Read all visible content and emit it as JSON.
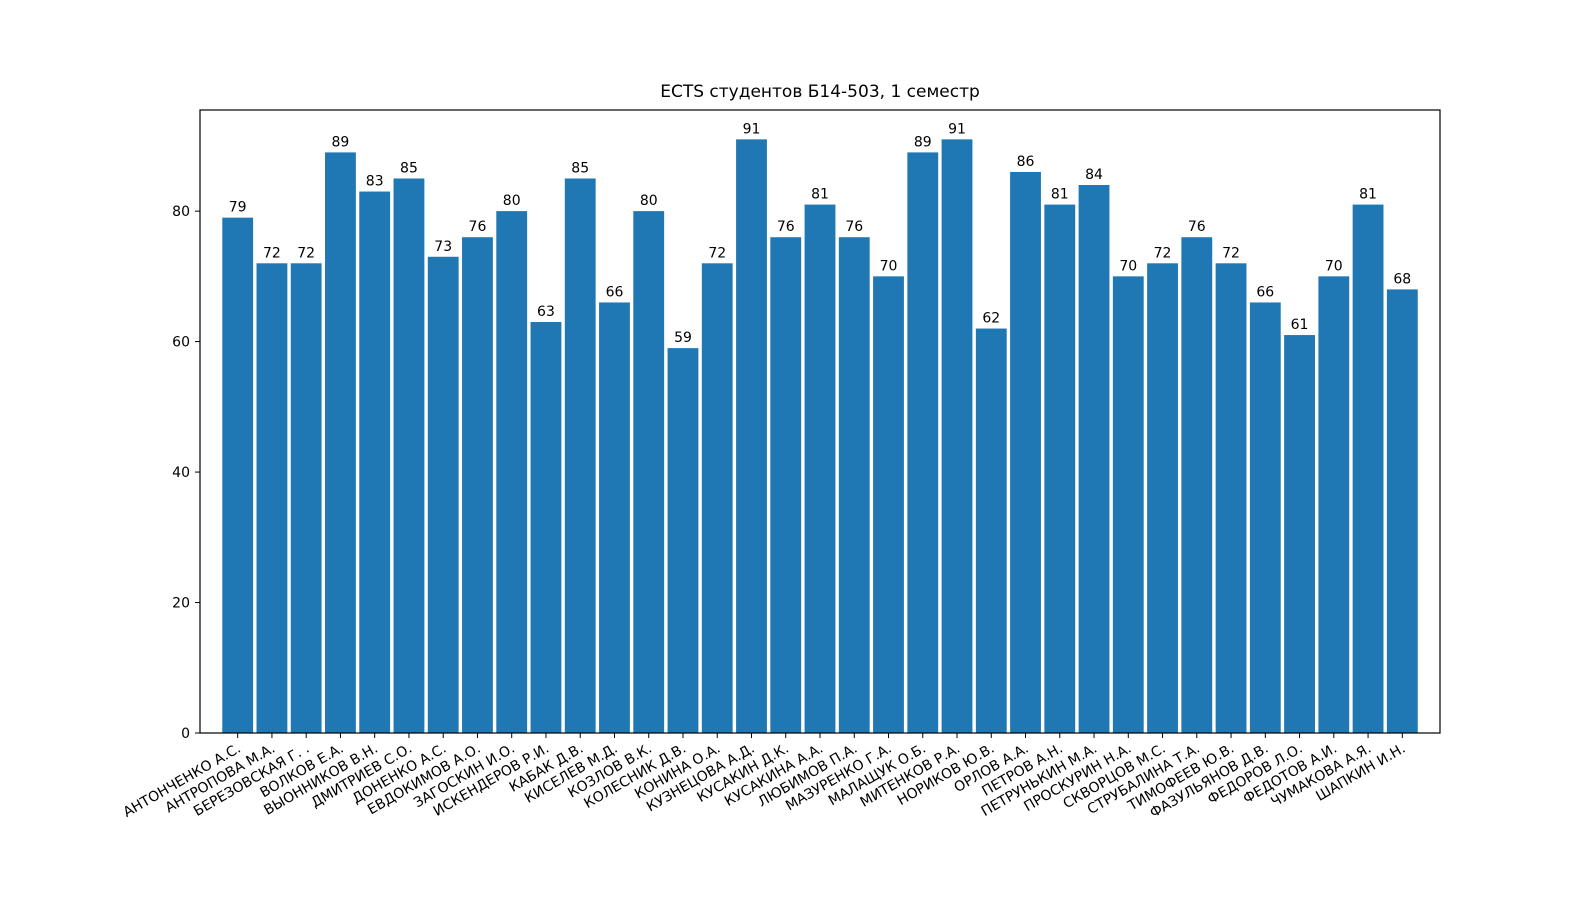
{
  "chart_data": {
    "type": "bar",
    "title": "ECTS студентов Б14-503, 1 семестр",
    "xlabel": "",
    "ylabel": "",
    "ylim": [
      0,
      95.5
    ],
    "yticks": [
      0,
      20,
      40,
      60,
      80
    ],
    "grid": false,
    "bar_color": "#1f77b4",
    "categories": [
      "АНТОНЧЕНКО А.С.",
      "АНТРОПОВА М.А.",
      "БЕРЕЗОВСКАЯ Г. .",
      "ВОЛКОВ Е.А.",
      "ВЫОННИКОВ В.Н.",
      "ДМИТРИЕВ С.О.",
      "ДОНЕНКО А.С.",
      "ЕВДОКИМОВ А.О.",
      "ЗАГОСКИН И.О.",
      "ИСКЕНДЕРОВ Р.И.",
      "КАБАК Д.В.",
      "КИСЕЛЕВ М.Д.",
      "КОЗЛОВ В.К.",
      "КОЛЕСНИК Д.В.",
      "КОНИНА О.А.",
      "КУЗНЕЦОВА А.Д.",
      "КУСАКИН Д.К.",
      "КУСАКИНА А.А.",
      "ЛЮБИМОВ П.А.",
      "МАЗУРЕНКО Г.А.",
      "МАЛАЩУК О.Б.",
      "МИТЕНКОВ Р.А.",
      "НОРИКОВ Ю.В.",
      "ОРЛОВ А.А.",
      "ПЕТРОВ А.Н.",
      "ПЕТРУНЬКИН М.А.",
      "ПРОСКУРИН Н.А.",
      "СКВОРЦОВ М.С.",
      "СТРУБАЛИНА Т.А.",
      "ТИМОФЕЕВ Ю.В.",
      "ФАЗУЛЬЯНОВ Д.В.",
      "ФЕДОРОВ Л.О.",
      "ФЕДОТОВ А.И.",
      "ЧУМАКОВА А.Я.",
      "ШАПКИН И.Н."
    ],
    "values": [
      79,
      72,
      72,
      89,
      83,
      85,
      73,
      76,
      80,
      63,
      85,
      66,
      80,
      59,
      72,
      91,
      76,
      81,
      76,
      70,
      89,
      91,
      62,
      86,
      81,
      84,
      70,
      72,
      76,
      72,
      66,
      61,
      70,
      81,
      68
    ]
  }
}
